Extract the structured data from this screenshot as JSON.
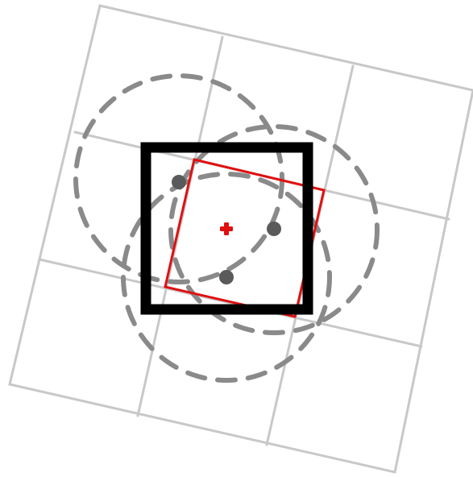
{
  "diagram": {
    "description_labels": [],
    "colors": {
      "background": "#ffffff",
      "grid": "#c8c8c8",
      "dashed_circle": "#8a8a8a",
      "sample_point": "#5a5a5a",
      "black_square": "#000000",
      "red_square": "#e01010",
      "center_marker": "#e01010"
    },
    "elements": {
      "grid": {
        "rows": 3,
        "cols": 3,
        "rotated": true
      },
      "dashed_circles": 3,
      "sample_points": 3,
      "black_square": "axis-aligned",
      "red_square": "rotated",
      "center_marker": "red-plus"
    }
  }
}
